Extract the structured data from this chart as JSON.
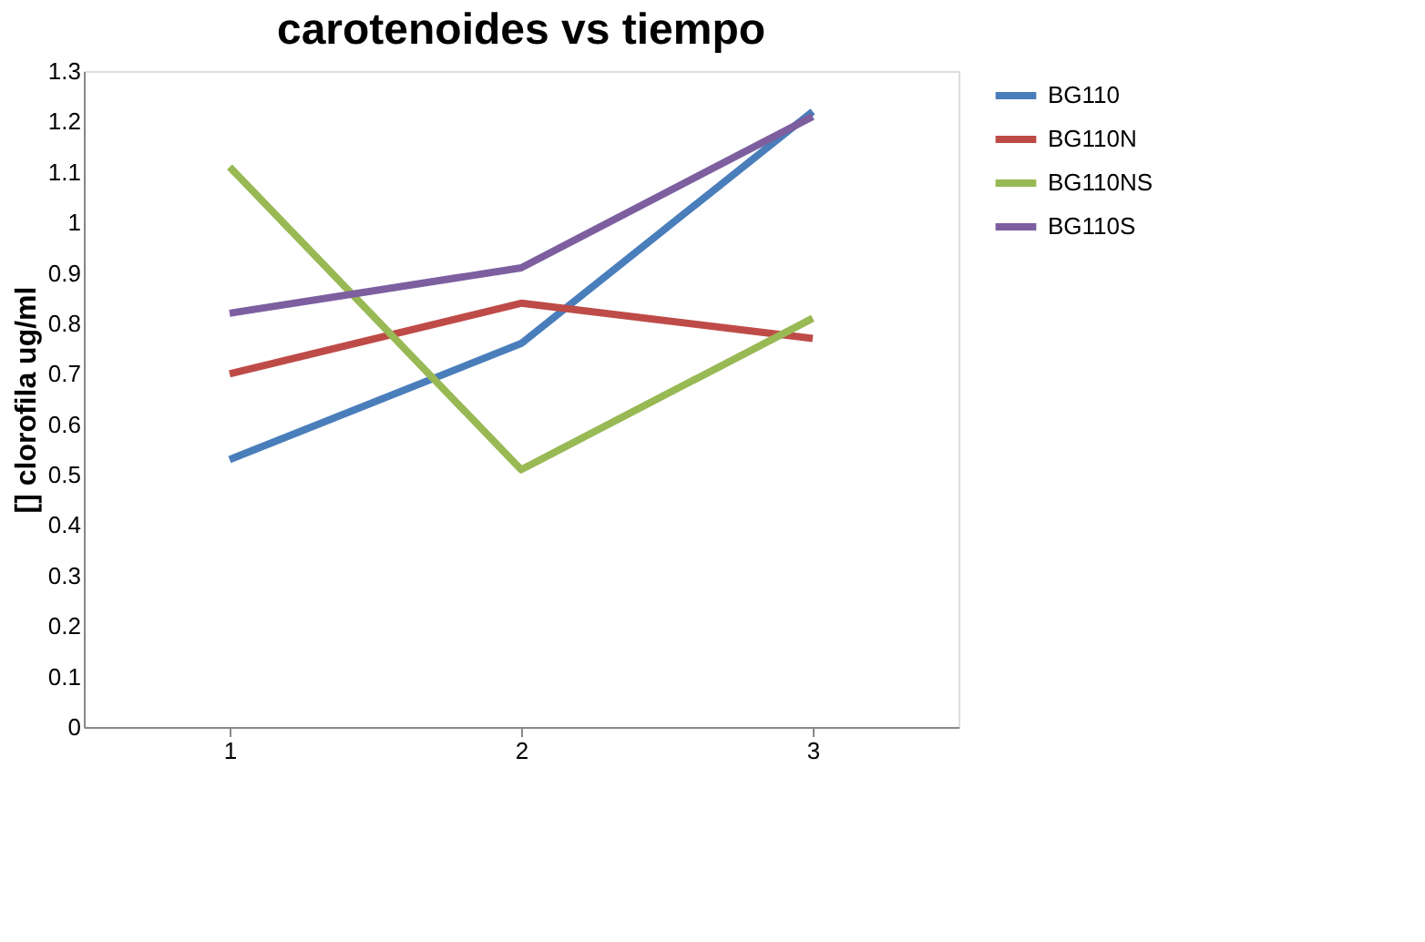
{
  "chart_data": {
    "type": "line",
    "title": "carotenoides vs tiempo",
    "ylabel": "[] clorofila ug/ml",
    "categories": [
      "1",
      "2",
      "3"
    ],
    "series": [
      {
        "name": "BG110",
        "color": "#4a7ebb",
        "values": [
          0.53,
          0.76,
          1.22
        ]
      },
      {
        "name": "BG110N",
        "color": "#be4b48",
        "values": [
          0.7,
          0.84,
          0.77
        ]
      },
      {
        "name": "BG110NS",
        "color": "#98b954",
        "values": [
          1.11,
          0.51,
          0.81
        ]
      },
      {
        "name": "BG110S",
        "color": "#7d5fa0",
        "values": [
          0.82,
          0.91,
          1.21
        ]
      }
    ],
    "ylim": [
      0,
      1.3
    ],
    "yticks": [
      0,
      0.1,
      0.2,
      0.3,
      0.4,
      0.5,
      0.6,
      0.7,
      0.8,
      0.9,
      1,
      1.1,
      1.2,
      1.3
    ],
    "grid": false,
    "legend": "right",
    "marker": "none",
    "line_style": "solid"
  }
}
